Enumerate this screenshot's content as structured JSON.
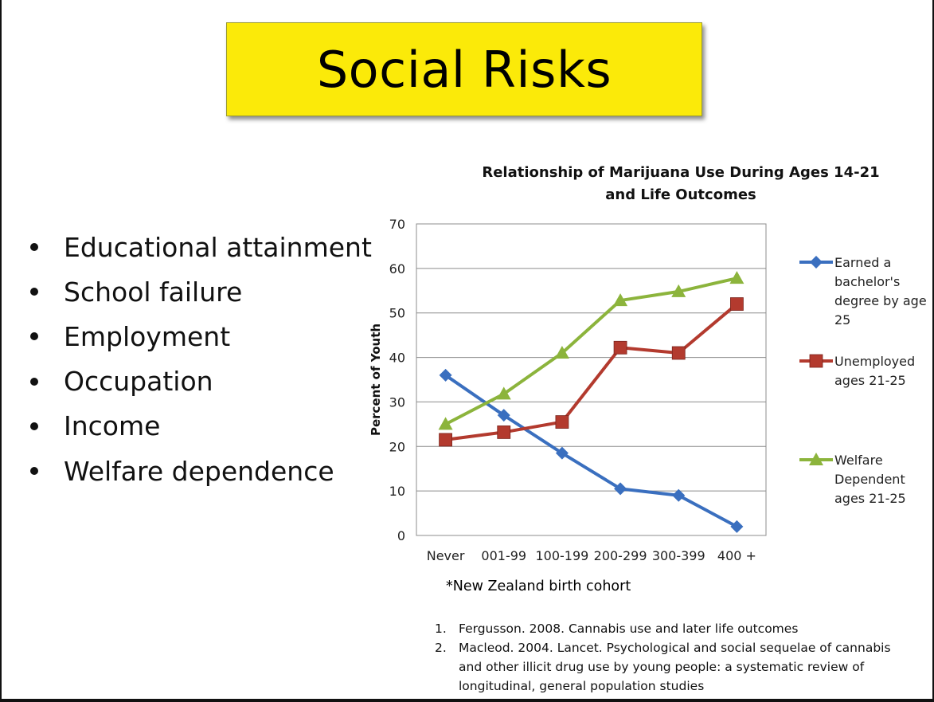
{
  "slide": {
    "title": "Social Risks",
    "bullets": [
      "Educational attainment",
      "School failure",
      "Employment",
      "Occupation",
      "Income",
      "Welfare dependence"
    ],
    "note": "*New Zealand birth cohort",
    "references": [
      {
        "num": "1.",
        "text": "Fergusson. 2008. Cannabis use and later life outcomes"
      },
      {
        "num": "2.",
        "text": "Macleod. 2004. Lancet. Psychological and social sequelae of cannabis and other illicit drug use by young people: a systematic review of longitudinal,  general population studies"
      }
    ]
  },
  "chart_data": {
    "type": "line",
    "title": "Relationship of Marijuana Use During Ages 14-21 and Life Outcomes",
    "title_lines": [
      "Relationship of Marijuana Use During Ages 14-21",
      "and Life Outcomes"
    ],
    "ylabel": "Percent of Youth",
    "xlabel": "",
    "categories": [
      "Never",
      "001-99",
      "100-199",
      "200-299",
      "300-399",
      "400 +"
    ],
    "ylim": [
      0,
      70
    ],
    "yticks": [
      0,
      10,
      20,
      30,
      40,
      50,
      60,
      70
    ],
    "grid": true,
    "legend_position": "right",
    "series": [
      {
        "name": "Earned a bachelor's degree by age 25",
        "legend_lines": [
          "Earned a",
          "bachelor's",
          "degree by age",
          "25"
        ],
        "color": "#3a6fbf",
        "marker": "diamond",
        "values": [
          36,
          27,
          18.5,
          10.5,
          9,
          2
        ]
      },
      {
        "name": "Unemployed ages 21-25",
        "legend_lines": [
          "Unemployed",
          "ages 21-25"
        ],
        "color": "#b33a2e",
        "marker": "square",
        "values": [
          21.5,
          23.2,
          25.5,
          42.2,
          41,
          52
        ]
      },
      {
        "name": "Welfare Dependent ages 21-25",
        "legend_lines": [
          "Welfare",
          "Dependent",
          "ages 21-25"
        ],
        "color": "#8cb43c",
        "marker": "triangle",
        "values": [
          25,
          31.8,
          41,
          52.8,
          54.8,
          57.8
        ]
      }
    ]
  }
}
